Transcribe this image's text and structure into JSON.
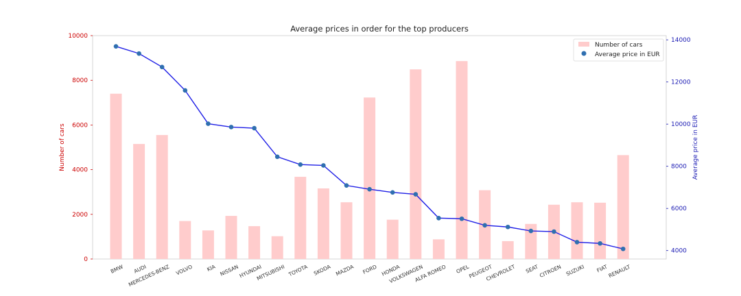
{
  "chart_data": {
    "type": "bar",
    "title": "Average prices in order for the top producers",
    "categories": [
      "BMW",
      "AUDI",
      "MERCEDES-BENZ",
      "VOLVO",
      "KIA",
      "NISSAN",
      "HYUNDAI",
      "MITSUBISHI",
      "TOYOTA",
      "SKODA",
      "MAZDA",
      "FORD",
      "HONDA",
      "VOLKSWAGEN",
      "ALFA ROMEO",
      "OPEL",
      "PEUGEOT",
      "CHEVROLET",
      "SEAT",
      "CITROEN",
      "SUZUKI",
      "FIAT",
      "RENAULT"
    ],
    "series": [
      {
        "name": "Number of cars",
        "type": "bar",
        "axis": "left",
        "color": "#ffcccc",
        "values": [
          7400,
          5150,
          5550,
          1700,
          1280,
          1930,
          1470,
          1020,
          3680,
          3160,
          2540,
          7230,
          1760,
          8490,
          880,
          8860,
          3080,
          800,
          1570,
          2430,
          2540,
          2520,
          4650
        ]
      },
      {
        "name": "Average price in EUR",
        "type": "line",
        "axis": "right",
        "color": "#1f1fe6",
        "marker_color": "#2f6fb0",
        "values": [
          13690,
          13350,
          12710,
          11600,
          10020,
          9860,
          9810,
          8450,
          8080,
          8040,
          7090,
          6910,
          6760,
          6670,
          5540,
          5510,
          5200,
          5120,
          4930,
          4900,
          4400,
          4340,
          4080
        ]
      }
    ],
    "ylabel_left": "Number of cars",
    "ylabel_right": "Average price in EUR",
    "ylim_left": [
      0,
      10000
    ],
    "yticks_left": [
      "0",
      "2000",
      "4000",
      "6000",
      "8000",
      "10000"
    ],
    "ylim_right": [
      3600,
      14200
    ],
    "yticks_right": [
      "4000",
      "6000",
      "8000",
      "10000",
      "12000",
      "14000"
    ],
    "left_axis_color": "#cc0000",
    "right_axis_color": "#1a1ab3",
    "grid": false,
    "legend_position": "top-right"
  }
}
